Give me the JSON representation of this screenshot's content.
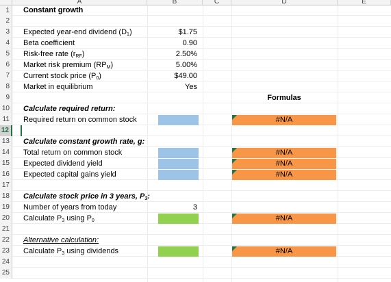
{
  "columns": [
    "A",
    "B",
    "C",
    "D",
    "E"
  ],
  "rows": [
    {
      "n": "1",
      "label": "Constant growth",
      "style": "bold"
    },
    {
      "n": "2",
      "label": ""
    },
    {
      "n": "3",
      "label": "Expected year-end dividend (D",
      "sub": "1",
      "close": ")",
      "value": "$1.75"
    },
    {
      "n": "4",
      "label": "Beta coefficient",
      "value": "0.90"
    },
    {
      "n": "5",
      "label": "Risk-free rate (r",
      "sub": "RF",
      "close": ")",
      "value": "2.50%"
    },
    {
      "n": "6",
      "label": "Market risk premium (RP",
      "sub": "M",
      "close": ")",
      "value": "5.00%"
    },
    {
      "n": "7",
      "label": "Current stock price (P",
      "sub": "0",
      "close": ")",
      "value": "$49.00"
    },
    {
      "n": "8",
      "label": "Market in equilibrium",
      "value": "Yes"
    },
    {
      "n": "9",
      "label": "",
      "formulas": "Formulas"
    },
    {
      "n": "10",
      "label": "Calculate required return:",
      "style": "bold-ital"
    },
    {
      "n": "11",
      "label": "Required return on common stock",
      "fill": "blue",
      "result": "#N/A"
    },
    {
      "n": "12",
      "label": "",
      "selected": true
    },
    {
      "n": "13",
      "label": "Calculate constant growth rate, g:",
      "style": "bold-ital"
    },
    {
      "n": "14",
      "label": "Total return on common stock",
      "fill": "blue",
      "result": "#N/A"
    },
    {
      "n": "15",
      "label": "Expected dividend yield",
      "fill": "blue",
      "result": "#N/A"
    },
    {
      "n": "16",
      "label": "Expected capital gains yield",
      "fill": "blue",
      "result": "#N/A"
    },
    {
      "n": "17",
      "label": ""
    },
    {
      "n": "18",
      "label": "Calculate stock price in 3 years, P",
      "sub": "3",
      "close": ":",
      "style": "bold-ital"
    },
    {
      "n": "19",
      "label": "Number of years from today",
      "value": "3"
    },
    {
      "n": "20",
      "label": "Calculate P",
      "sub": "3",
      "close": " using P",
      "sub2": "0",
      "fill": "green",
      "result": "#N/A"
    },
    {
      "n": "21",
      "label": ""
    },
    {
      "n": "22",
      "label": "Alternative calculation:",
      "style": "ital-ul"
    },
    {
      "n": "23",
      "label": "Calculate P",
      "sub": "3",
      "close": " using dividends",
      "fill": "green",
      "result": "#N/A"
    },
    {
      "n": "24",
      "label": ""
    },
    {
      "n": "25",
      "label": ""
    }
  ],
  "colors": {
    "blue": "#9dc3e6",
    "green": "#92d050",
    "orange": "#f79646",
    "accent": "#217346"
  }
}
